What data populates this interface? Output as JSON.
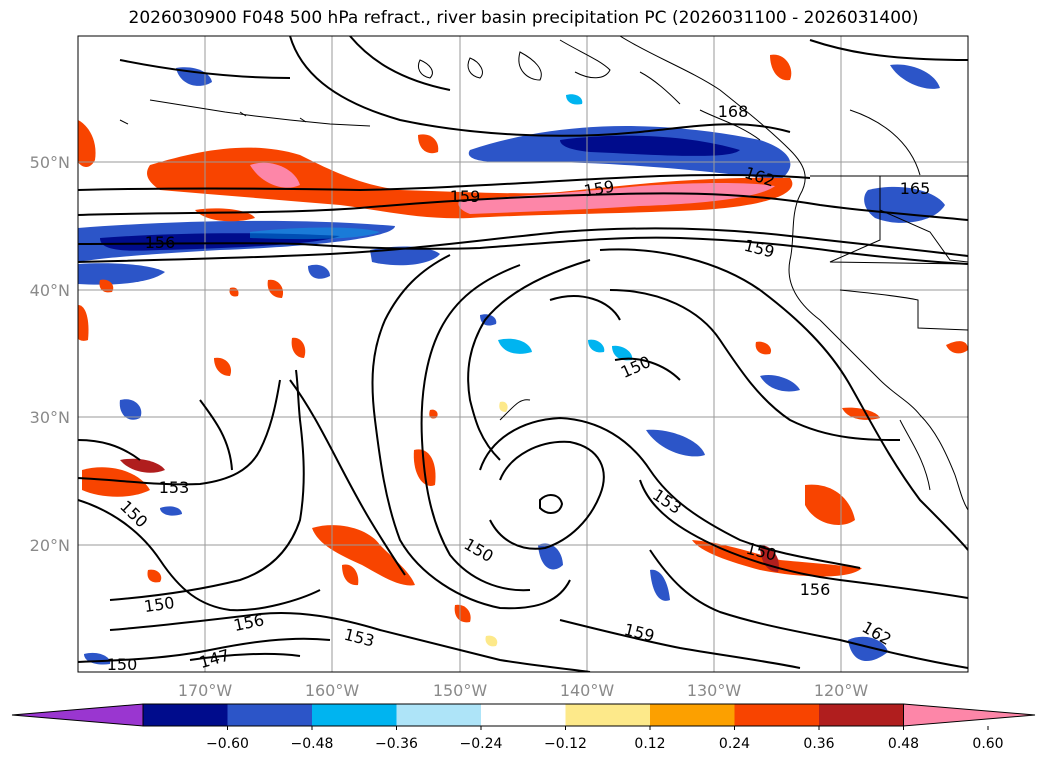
{
  "title": "2026030900 F048 500 hPa refract., river basin precipitation PC (2026031100 - 2026031400)",
  "map": {
    "lat_labels": [
      "50°N",
      "40°N",
      "30°N",
      "20°N"
    ],
    "lon_labels": [
      "170°W",
      "160°W",
      "150°W",
      "140°W",
      "130°W",
      "120°W"
    ],
    "contour_labels": [
      "168",
      "162",
      "165",
      "159",
      "159",
      "156",
      "159",
      "150",
      "153",
      "150",
      "150",
      "153",
      "156",
      "150",
      "150",
      "156",
      "153",
      "159",
      "162",
      "150",
      "147"
    ],
    "colors": {
      "strong_neg": "#000c8c",
      "mid_neg": "#2c55c8",
      "light_neg": "#00b4f0",
      "pale_neg": "#aee4f8",
      "pale_pos": "#fde98a",
      "light_pos": "#fca000",
      "mid_pos": "#f84400",
      "strong_pos": "#b01e1e",
      "max_pos": "#fd86a8"
    }
  },
  "colorbar": {
    "ticks": [
      "−0.60",
      "−0.48",
      "−0.36",
      "−0.24",
      "−0.12",
      "0.12",
      "0.24",
      "0.36",
      "0.48",
      "0.60"
    ],
    "colors": [
      "#9a36d0",
      "#000c8c",
      "#2c55c8",
      "#00b4f0",
      "#aee4f8",
      "#ffffff",
      "#fde98a",
      "#fca000",
      "#f84400",
      "#b01e1e",
      "#fd86a8"
    ]
  }
}
